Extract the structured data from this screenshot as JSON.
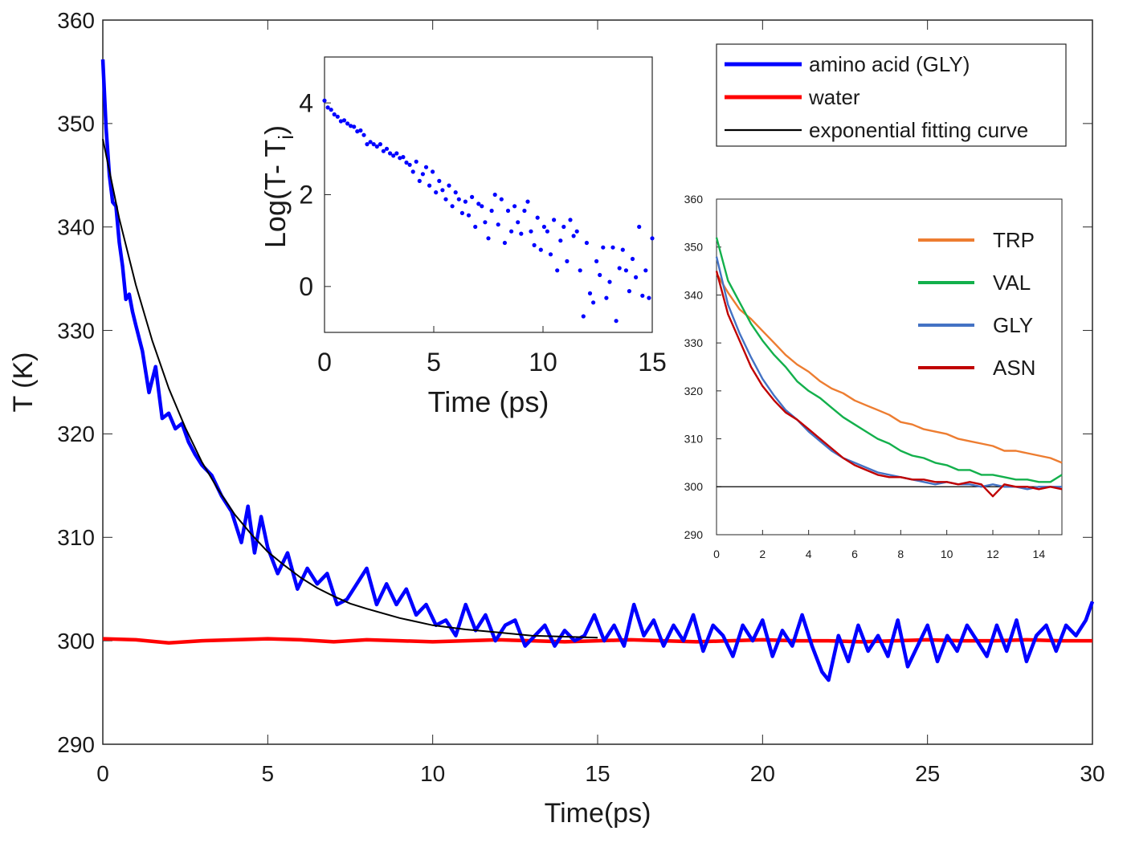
{
  "chart_data": [
    {
      "id": "main",
      "type": "line",
      "title": "",
      "xlabel": "Time(ps)",
      "ylabel": "T (K)",
      "xlim": [
        0,
        30
      ],
      "ylim": [
        290,
        360
      ],
      "xticks": [
        0,
        5,
        10,
        15,
        20,
        25,
        30
      ],
      "yticks": [
        290,
        300,
        310,
        320,
        330,
        340,
        350,
        360
      ],
      "grid": false,
      "legend_position": "top-right",
      "series": [
        {
          "name": "amino acid (GLY)",
          "color": "#0000ff",
          "x": [
            0,
            0.1,
            0.2,
            0.3,
            0.4,
            0.5,
            0.6,
            0.7,
            0.8,
            0.9,
            1.0,
            1.2,
            1.4,
            1.6,
            1.8,
            2.0,
            2.2,
            2.4,
            2.6,
            2.8,
            3.0,
            3.3,
            3.6,
            3.9,
            4.2,
            4.4,
            4.6,
            4.8,
            5.0,
            5.3,
            5.6,
            5.9,
            6.2,
            6.5,
            6.8,
            7.1,
            7.4,
            7.7,
            8.0,
            8.3,
            8.6,
            8.9,
            9.2,
            9.5,
            9.8,
            10.1,
            10.4,
            10.7,
            11.0,
            11.3,
            11.6,
            11.9,
            12.2,
            12.5,
            12.8,
            13.1,
            13.4,
            13.7,
            14.0,
            14.3,
            14.6,
            14.9,
            15.2,
            15.5,
            15.8,
            16.1,
            16.4,
            16.7,
            17.0,
            17.3,
            17.6,
            17.9,
            18.2,
            18.5,
            18.8,
            19.1,
            19.4,
            19.7,
            20.0,
            20.3,
            20.6,
            20.9,
            21.2,
            21.5,
            21.8,
            22.0,
            22.3,
            22.6,
            22.9,
            23.2,
            23.5,
            23.8,
            24.1,
            24.4,
            24.7,
            25.0,
            25.3,
            25.6,
            25.9,
            26.2,
            26.5,
            26.8,
            27.1,
            27.4,
            27.7,
            28.0,
            28.3,
            28.6,
            28.9,
            29.2,
            29.5,
            29.8,
            30.0
          ],
          "y": [
            356.2,
            349.5,
            345.0,
            342.4,
            342.0,
            338.5,
            336.2,
            333.0,
            333.5,
            331.8,
            330.5,
            328.0,
            324.0,
            326.5,
            321.5,
            322.0,
            320.5,
            321.0,
            319.2,
            318.0,
            317.0,
            316.0,
            314.0,
            312.5,
            309.5,
            313.0,
            308.5,
            312.0,
            309.0,
            306.5,
            308.5,
            305.0,
            307.0,
            305.5,
            306.5,
            303.5,
            304.0,
            305.5,
            307.0,
            303.5,
            305.5,
            303.5,
            305.0,
            302.5,
            303.5,
            301.5,
            302.0,
            300.5,
            303.5,
            301.0,
            302.5,
            300.0,
            301.5,
            302.0,
            299.5,
            300.5,
            301.5,
            299.5,
            301.0,
            300.0,
            300.5,
            302.5,
            300.0,
            301.5,
            299.5,
            303.5,
            300.5,
            302.0,
            299.5,
            301.5,
            300.0,
            302.5,
            299.0,
            301.5,
            300.5,
            298.5,
            301.5,
            300.0,
            302.0,
            298.5,
            301.0,
            299.5,
            302.5,
            299.5,
            297.0,
            296.2,
            300.5,
            298.0,
            301.5,
            299.0,
            300.5,
            298.5,
            302.0,
            297.5,
            299.5,
            301.5,
            298.0,
            300.5,
            299.0,
            301.5,
            300.0,
            298.5,
            301.5,
            299.0,
            302.0,
            298.0,
            300.5,
            301.5,
            299.0,
            301.5,
            300.5,
            302.0,
            303.8
          ]
        },
        {
          "name": "water",
          "color": "#ff0000",
          "x": [
            0,
            1,
            2,
            3,
            4,
            5,
            6,
            7,
            8,
            9,
            10,
            11,
            12,
            13,
            14,
            15,
            16,
            17,
            18,
            19,
            20,
            21,
            22,
            23,
            24,
            25,
            26,
            27,
            28,
            29,
            30
          ],
          "y": [
            300.2,
            300.1,
            299.8,
            300.0,
            300.1,
            300.2,
            300.1,
            299.9,
            300.1,
            300.0,
            299.9,
            300.0,
            300.1,
            300.0,
            299.9,
            300.0,
            300.1,
            300.0,
            299.9,
            300.0,
            300.1,
            300.0,
            300.0,
            299.9,
            300.0,
            300.1,
            300.0,
            300.0,
            300.1,
            300.0,
            300.0
          ]
        },
        {
          "name": "exponential fitting curve",
          "color": "#000000",
          "model": "300 + 48.5 * exp(-x / 2.9)",
          "x": [
            0,
            0.5,
            1,
            1.5,
            2,
            2.5,
            3,
            3.5,
            4,
            4.5,
            5,
            5.5,
            6,
            6.5,
            7,
            7.5,
            8,
            9,
            10,
            11,
            12,
            13,
            14,
            15
          ],
          "y": [
            348.5,
            340.8,
            334.4,
            329.0,
            324.4,
            320.6,
            317.3,
            314.6,
            312.2,
            310.3,
            308.6,
            307.3,
            306.1,
            305.1,
            304.3,
            303.6,
            303.1,
            302.2,
            301.5,
            301.1,
            300.8,
            300.5,
            300.4,
            300.3
          ]
        }
      ]
    },
    {
      "id": "inset-left",
      "type": "scatter",
      "xlabel": "Time (ps)",
      "ylabel": "Log(T- T",
      "ylabel_subscript": "i",
      "ylabel_suffix": ")",
      "xlim": [
        0,
        15
      ],
      "ylim": [
        -1,
        5
      ],
      "xticks": [
        0,
        5,
        10,
        15
      ],
      "yticks": [
        0,
        2,
        4
      ],
      "grid": false,
      "series": [
        {
          "name": "log-scatter",
          "color": "#0000ff",
          "x": [
            0,
            0.15,
            0.3,
            0.45,
            0.6,
            0.75,
            0.9,
            1.05,
            1.2,
            1.35,
            1.5,
            1.65,
            1.8,
            1.95,
            2.1,
            2.25,
            2.4,
            2.55,
            2.7,
            2.85,
            3.0,
            3.15,
            3.3,
            3.45,
            3.6,
            3.75,
            3.9,
            4.05,
            4.2,
            4.35,
            4.5,
            4.65,
            4.8,
            4.95,
            5.1,
            5.25,
            5.4,
            5.55,
            5.7,
            5.85,
            6.0,
            6.15,
            6.3,
            6.45,
            6.6,
            6.75,
            6.9,
            7.05,
            7.2,
            7.35,
            7.5,
            7.65,
            7.8,
            7.95,
            8.1,
            8.25,
            8.4,
            8.55,
            8.7,
            8.85,
            9.0,
            9.15,
            9.3,
            9.45,
            9.6,
            9.75,
            9.9,
            10.05,
            10.2,
            10.35,
            10.5,
            10.65,
            10.8,
            10.95,
            11.1,
            11.25,
            11.4,
            11.55,
            11.7,
            11.85,
            12.0,
            12.15,
            12.3,
            12.45,
            12.6,
            12.75,
            12.9,
            13.05,
            13.2,
            13.35,
            13.5,
            13.65,
            13.8,
            13.95,
            14.1,
            14.25,
            14.4,
            14.55,
            14.7,
            14.85,
            15.0
          ],
          "y": [
            4.05,
            3.9,
            3.85,
            3.75,
            3.7,
            3.6,
            3.62,
            3.55,
            3.5,
            3.48,
            3.38,
            3.4,
            3.3,
            3.1,
            3.15,
            3.1,
            3.05,
            3.1,
            2.95,
            3.0,
            2.9,
            2.85,
            2.9,
            2.8,
            2.82,
            2.7,
            2.65,
            2.5,
            2.72,
            2.3,
            2.45,
            2.6,
            2.2,
            2.5,
            2.05,
            2.3,
            2.1,
            1.9,
            2.2,
            1.75,
            2.05,
            1.9,
            1.6,
            1.85,
            1.55,
            1.95,
            1.3,
            1.8,
            1.75,
            1.4,
            1.05,
            1.65,
            2.0,
            1.35,
            1.9,
            0.95,
            1.65,
            1.2,
            1.75,
            1.4,
            1.15,
            1.65,
            1.85,
            1.2,
            0.9,
            1.5,
            0.8,
            1.3,
            1.2,
            0.7,
            1.45,
            0.35,
            1.0,
            1.3,
            0.55,
            1.45,
            1.1,
            1.2,
            0.35,
            -0.65,
            0.95,
            -0.15,
            -0.35,
            0.55,
            0.25,
            0.85,
            -0.25,
            0.1,
            0.85,
            -0.75,
            0.4,
            0.8,
            0.35,
            -0.1,
            0.6,
            0.2,
            1.3,
            -0.2,
            0.35,
            -0.25,
            1.05
          ]
        }
      ]
    },
    {
      "id": "inset-right",
      "type": "line",
      "xlim": [
        0,
        15
      ],
      "ylim": [
        290,
        360
      ],
      "xticks": [
        0,
        2,
        4,
        6,
        8,
        10,
        12,
        14
      ],
      "yticks": [
        290,
        300,
        310,
        320,
        330,
        340,
        350,
        360
      ],
      "grid": false,
      "legend_position": "top-right",
      "reference_line_y": 300,
      "series": [
        {
          "name": "TRP",
          "color": "#ed7d31",
          "x": [
            0,
            0.5,
            1,
            1.5,
            2,
            2.5,
            3,
            3.5,
            4,
            4.5,
            5,
            5.5,
            6,
            6.5,
            7,
            7.5,
            8,
            8.5,
            9,
            9.5,
            10,
            10.5,
            11,
            11.5,
            12,
            12.5,
            13,
            13.5,
            14,
            14.5,
            15
          ],
          "y": [
            344.5,
            340.5,
            337.0,
            335.0,
            332.5,
            330.0,
            327.5,
            325.5,
            324.0,
            322.0,
            320.5,
            319.5,
            318.0,
            317.0,
            316.0,
            315.0,
            313.5,
            313.0,
            312.0,
            311.5,
            311.0,
            310.0,
            309.5,
            309.0,
            308.5,
            307.5,
            307.5,
            307.0,
            306.5,
            306.0,
            305.0
          ]
        },
        {
          "name": "VAL",
          "color": "#13b04c",
          "x": [
            0,
            0.5,
            1,
            1.5,
            2,
            2.5,
            3,
            3.5,
            4,
            4.5,
            5,
            5.5,
            6,
            6.5,
            7,
            7.5,
            8,
            8.5,
            9,
            9.5,
            10,
            10.5,
            11,
            11.5,
            12,
            12.5,
            13,
            13.5,
            14,
            14.5,
            15
          ],
          "y": [
            352.0,
            343.0,
            338.5,
            334.0,
            330.5,
            327.5,
            325.0,
            322.0,
            320.0,
            318.5,
            316.5,
            314.5,
            313.0,
            311.5,
            310.0,
            309.0,
            307.5,
            306.5,
            306.0,
            305.0,
            304.5,
            303.5,
            303.5,
            302.5,
            302.5,
            302.0,
            301.5,
            301.5,
            301.0,
            301.0,
            302.5
          ]
        },
        {
          "name": "GLY",
          "color": "#4472c4",
          "x": [
            0,
            0.5,
            1,
            1.5,
            2,
            2.5,
            3,
            3.5,
            4,
            4.5,
            5,
            5.5,
            6,
            6.5,
            7,
            7.5,
            8,
            8.5,
            9,
            9.5,
            10,
            10.5,
            11,
            11.5,
            12,
            12.5,
            13,
            13.5,
            14,
            14.5,
            15
          ],
          "y": [
            348.0,
            338.0,
            332.0,
            327.0,
            322.5,
            319.0,
            316.0,
            314.0,
            311.5,
            309.5,
            307.5,
            306.0,
            305.0,
            304.0,
            303.0,
            302.5,
            302.0,
            301.5,
            301.0,
            300.5,
            301.0,
            300.5,
            300.5,
            300.0,
            300.5,
            300.0,
            300.0,
            299.5,
            300.0,
            300.0,
            300.0
          ]
        },
        {
          "name": "ASN",
          "color": "#c00000",
          "x": [
            0,
            0.5,
            1,
            1.5,
            2,
            2.5,
            3,
            3.5,
            4,
            4.5,
            5,
            5.5,
            6,
            6.5,
            7,
            7.5,
            8,
            8.5,
            9,
            9.5,
            10,
            10.5,
            11,
            11.5,
            12,
            12.5,
            13,
            13.5,
            14,
            14.5,
            15
          ],
          "y": [
            345.0,
            336.0,
            330.5,
            325.0,
            321.0,
            318.0,
            315.5,
            314.0,
            312.0,
            310.0,
            308.0,
            306.0,
            304.5,
            303.5,
            302.5,
            302.0,
            302.0,
            301.5,
            301.5,
            301.0,
            301.0,
            300.5,
            301.0,
            300.5,
            298.0,
            300.5,
            300.0,
            300.0,
            299.5,
            300.0,
            299.5
          ]
        }
      ]
    }
  ]
}
